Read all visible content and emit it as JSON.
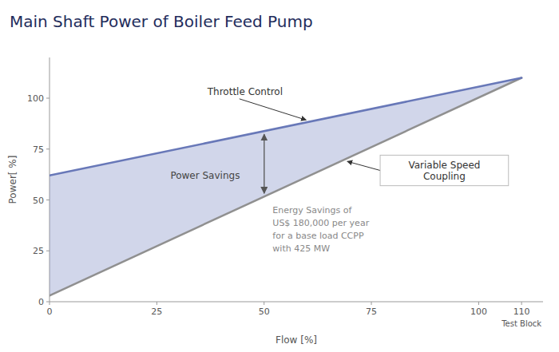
{
  "chart_data": {
    "type": "line",
    "title": "Main Shaft Power of Boiler Feed Pump",
    "x_label": "Flow [%]",
    "y_label": "Power[ %]",
    "xlim": [
      0,
      115
    ],
    "ylim": [
      0,
      120
    ],
    "xticks": [
      0,
      25,
      50,
      75,
      100,
      110
    ],
    "yticks": [
      0,
      25,
      50,
      75,
      100
    ],
    "grid": false,
    "x": [
      0,
      110
    ],
    "series": [
      {
        "name": "Throttle Control",
        "color": "#6878b8",
        "values": [
          62,
          110
        ]
      },
      {
        "name": "Variable Speed\nCoupling",
        "color": "#909090",
        "values": [
          3,
          110
        ]
      }
    ],
    "annotations": [
      {
        "text": "Power Savings"
      },
      {
        "text": "Energy Savings of\n\nUS$ 180,000 per year\n\nfor a base load CCPP\n\nwith 425 MW"
      },
      {
        "text": "Test Block"
      }
    ]
  }
}
